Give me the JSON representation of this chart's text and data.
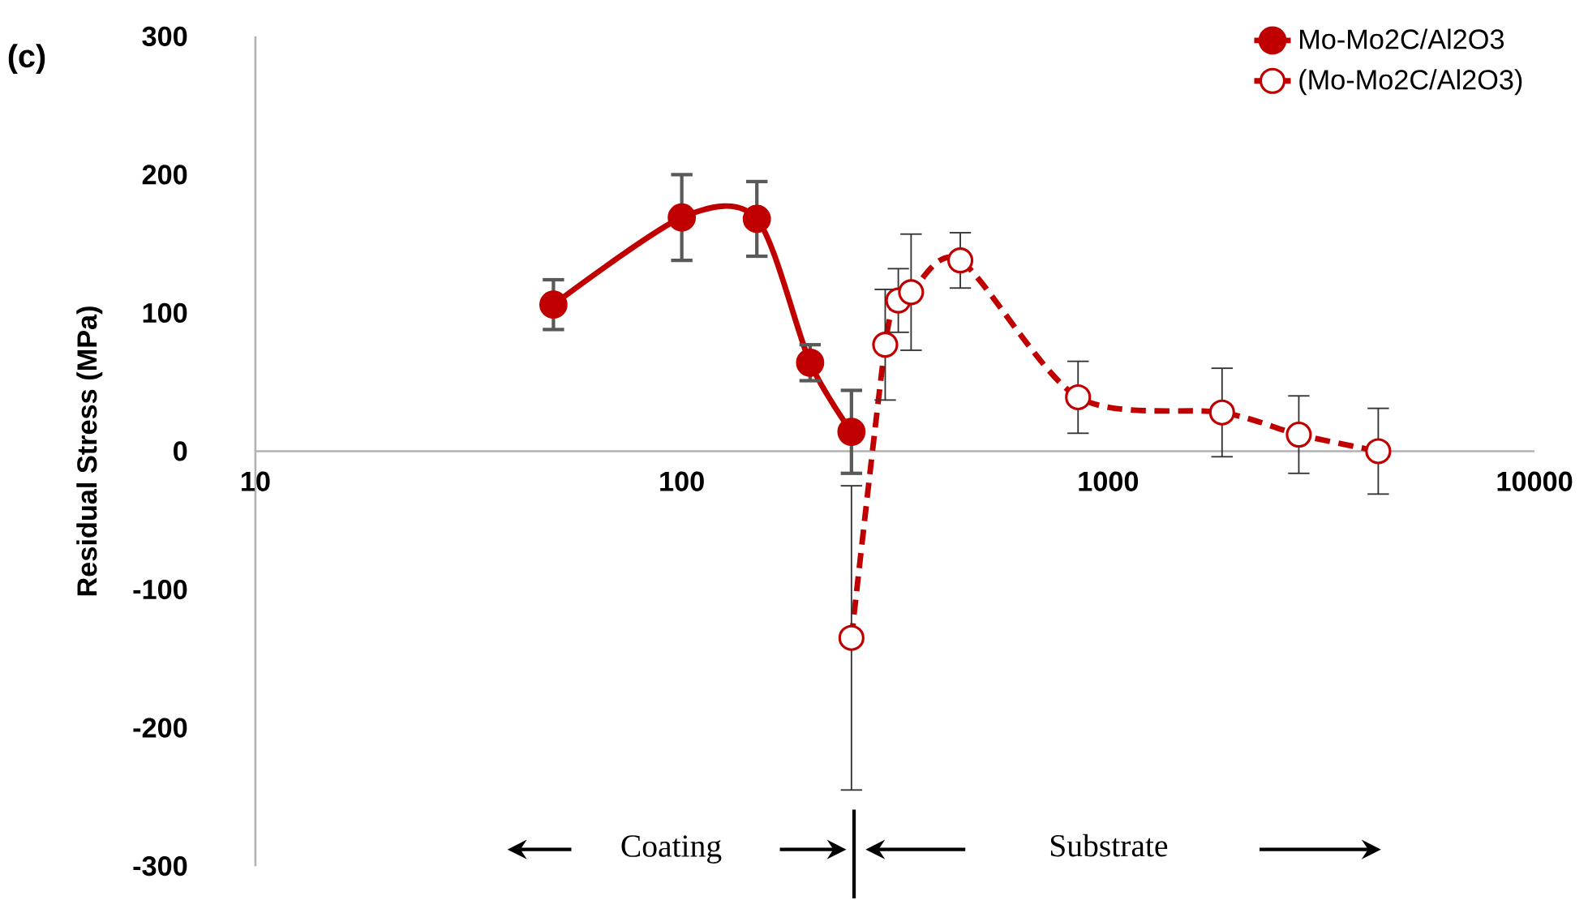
{
  "chart_data": {
    "type": "line",
    "ylabel": "Residual Stress (MPa)",
    "annotations": [
      "(c)",
      "Coating",
      "Substrate"
    ],
    "log": "x",
    "xlim": [
      10,
      10000
    ],
    "xticks": [
      10,
      100,
      1000,
      10000
    ],
    "ylim": [
      -300,
      300
    ],
    "yticks": [
      -300,
      -200,
      -100,
      0,
      100,
      200,
      300
    ],
    "grid": false,
    "legend": "top right",
    "marker": "circle",
    "series": [
      {
        "name": "Mo-Mo2C/Al2O3",
        "color": "#c00000",
        "line_style": "solid",
        "x": [
          50,
          100,
          150,
          200,
          250
        ],
        "values": [
          106,
          169,
          168,
          64,
          14
        ],
        "errors": [
          18,
          31,
          27,
          13,
          30
        ]
      },
      {
        "name": "(Mo-Mo2C/Al2O3)",
        "color": "#c00000",
        "line_style": "dashed",
        "x": [
          250,
          300,
          322,
          345,
          450,
          850,
          1850,
          2800,
          4300
        ],
        "values": [
          -135,
          77,
          109,
          115,
          138,
          39,
          28,
          12,
          0
        ],
        "errors": [
          110,
          40,
          23,
          42,
          20,
          26,
          32,
          28,
          31
        ]
      }
    ]
  }
}
